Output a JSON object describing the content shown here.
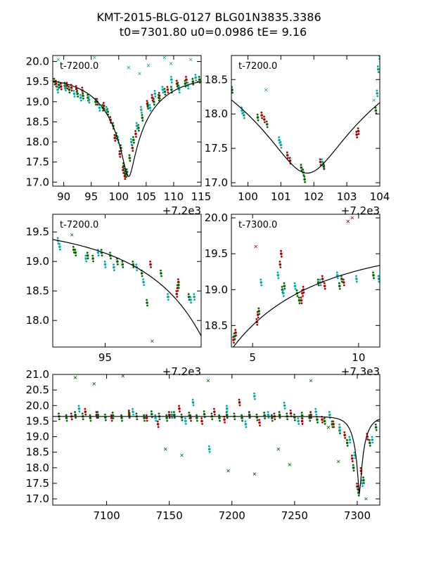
{
  "figure": {
    "title_line1": "KMT-2015-BLG-0127 BLG01N3835.3386",
    "title_line2": "t0=7301.80 u0=0.0986 tE=   9.16"
  },
  "colors": {
    "kmt_a": "#aa0000",
    "kmt_b": "#006600",
    "kmt_c": "#00aaaa",
    "model": "#000000"
  },
  "model": {
    "t0": 7301.8,
    "u0": 0.0986,
    "tE": 9.16,
    "base_mag": 19.65,
    "peak_mag": 17.14
  },
  "chart_data": [
    {
      "type": "scatter",
      "name": "zoom-left",
      "label": "t-7200.0",
      "offset_text": "+7.2e3",
      "xlim": [
        88,
        115
      ],
      "ylim": [
        20.15,
        16.9
      ],
      "xticks": [
        90,
        95,
        100,
        105,
        110,
        115
      ],
      "xtick_labels": [
        "90",
        "95",
        "100",
        "105",
        "110",
        "115"
      ],
      "yticks": [
        17.0,
        17.5,
        18.0,
        18.5,
        19.0,
        19.5,
        20.0
      ],
      "ytick_labels": [
        "17.0",
        "17.5",
        "18.0",
        "18.5",
        "19.0",
        "19.5",
        "20.0"
      ],
      "series": [
        {
          "name": "site-red",
          "color": "#aa0000",
          "x": [
            88.6,
            89.5,
            90.6,
            91.4,
            92.3,
            93.4,
            96.1,
            97.3,
            98.5,
            99.3,
            100.2,
            100.8,
            101.1,
            101.3,
            102.5,
            103.1,
            105.2,
            106.1,
            107.4,
            108.9,
            110.6,
            112.3
          ],
          "y": [
            19.45,
            19.38,
            19.4,
            19.35,
            19.32,
            19.28,
            19.0,
            18.9,
            18.55,
            18.1,
            17.7,
            17.3,
            17.15,
            17.2,
            17.85,
            18.2,
            18.95,
            19.1,
            19.15,
            19.3,
            19.45,
            19.55
          ]
        },
        {
          "name": "site-green",
          "color": "#006600",
          "x": [
            88.3,
            89.1,
            90.2,
            91.0,
            92.5,
            93.5,
            94.4,
            95.8,
            97.1,
            98.0,
            99.0,
            99.6,
            100.4,
            100.9,
            101.2,
            101.5,
            102.0,
            102.7,
            103.6,
            104.3,
            105.3,
            106.4,
            107.3,
            108.4,
            109.6,
            110.8,
            112.1,
            113.5,
            114.7
          ],
          "y": [
            19.5,
            19.42,
            19.4,
            19.3,
            19.2,
            19.15,
            19.1,
            19.0,
            18.85,
            18.75,
            18.4,
            18.15,
            17.85,
            17.4,
            17.2,
            17.25,
            17.6,
            18.05,
            18.35,
            18.6,
            18.9,
            19.0,
            19.1,
            19.25,
            19.3,
            19.4,
            19.45,
            19.5,
            19.55
          ]
        },
        {
          "name": "site-cyan",
          "color": "#00aaaa",
          "x": [
            88.9,
            90.3,
            91.9,
            93.1,
            94.6,
            96.5,
            97.8,
            99.9,
            102.3,
            103.3,
            104.1,
            105.7,
            106.6,
            108.0,
            109.6,
            111.0,
            112.6,
            114.0
          ],
          "y": [
            19.3,
            19.35,
            19.2,
            19.1,
            19.05,
            18.85,
            18.8,
            18.05,
            18.0,
            18.4,
            18.8,
            18.85,
            19.2,
            19.3,
            19.55,
            19.3,
            19.4,
            19.6
          ]
        },
        {
          "name": "outliers",
          "color": "#00aaaa",
          "x": [
            89.0,
            95.6,
            101.8,
            103.8,
            105.4,
            108.3,
            109.5,
            113.1
          ],
          "y": [
            20.05,
            20.1,
            19.85,
            19.7,
            19.9,
            20.1,
            19.95,
            20.05
          ]
        }
      ]
    },
    {
      "type": "scatter",
      "name": "zoom-right",
      "label": "t-7200.0",
      "offset_text": "+7.2e3",
      "xlim": [
        99.5,
        104.0
      ],
      "ylim": [
        18.85,
        16.95
      ],
      "xticks": [
        100,
        101,
        102,
        103,
        104
      ],
      "xtick_labels": [
        "100",
        "101",
        "102",
        "103",
        "104"
      ],
      "yticks": [
        17.0,
        17.5,
        18.0,
        18.5
      ],
      "ytick_labels": [
        "17.0",
        "17.5",
        "18.0",
        "18.5"
      ],
      "series": [
        {
          "name": "site-red",
          "color": "#aa0000",
          "x": [
            100.42,
            100.5,
            101.2,
            101.28,
            102.2,
            102.3,
            103.3,
            103.35
          ],
          "y": [
            17.98,
            17.92,
            17.4,
            17.32,
            17.3,
            17.24,
            17.7,
            17.75
          ]
        },
        {
          "name": "site-green",
          "color": "#006600",
          "x": [
            99.52,
            100.3,
            100.58,
            101.62,
            101.68,
            101.72,
            102.3,
            103.88
          ],
          "y": [
            18.35,
            17.95,
            17.85,
            17.22,
            17.15,
            17.05,
            17.25,
            18.05
          ]
        },
        {
          "name": "site-cyan",
          "color": "#00aaaa",
          "x": [
            99.82,
            99.88,
            100.95,
            101.0,
            102.25,
            103.92,
            103.95,
            104.0
          ],
          "y": [
            18.05,
            17.98,
            17.62,
            17.55,
            17.3,
            18.3,
            18.65,
            18.8
          ]
        },
        {
          "name": "outliers",
          "color": "#00aaaa",
          "x": [
            100.55,
            103.82
          ],
          "y": [
            18.35,
            18.2
          ]
        }
      ]
    },
    {
      "type": "scatter",
      "name": "early-rise",
      "label": "t-7200.0",
      "offset_text": "+7.2e3",
      "xlim": [
        92.0,
        100.5
      ],
      "ylim": [
        19.8,
        17.55
      ],
      "xticks": [
        95
      ],
      "xtick_labels": [
        "95"
      ],
      "yticks": [
        18.0,
        18.5,
        19.0,
        19.5
      ],
      "ytick_labels": [
        "18.0",
        "18.5",
        "19.0",
        "19.5"
      ],
      "series": [
        {
          "name": "site-red",
          "color": "#aa0000",
          "x": [
            99.1,
            99.15,
            99.2,
            97.6
          ],
          "y": [
            18.45,
            18.55,
            18.65,
            18.95
          ]
        },
        {
          "name": "site-green",
          "color": "#006600",
          "x": [
            93.2,
            93.3,
            94.0,
            94.3,
            94.8,
            95.3,
            95.7,
            96.0,
            96.6,
            97.1,
            97.4,
            98.2,
            99.2,
            99.8
          ],
          "y": [
            19.2,
            19.15,
            19.1,
            19.05,
            19.15,
            19.1,
            19.0,
            18.95,
            18.95,
            18.8,
            18.3,
            18.8,
            18.6,
            18.4
          ]
        },
        {
          "name": "site-cyan",
          "color": "#00aaaa",
          "x": [
            92.3,
            92.4,
            93.9,
            94.6,
            95.0,
            95.5,
            96.8,
            97.2,
            98.6,
            99.9,
            100.1
          ],
          "y": [
            19.35,
            19.25,
            19.05,
            19.15,
            18.95,
            18.9,
            18.9,
            18.65,
            18.4,
            18.35,
            18.4
          ]
        },
        {
          "name": "outliers",
          "color": "#006600",
          "x": [
            93.1,
            97.7
          ],
          "y": [
            19.45,
            17.65
          ]
        }
      ]
    },
    {
      "type": "scatter",
      "name": "post-peak",
      "label": "t-7300.0",
      "offset_text": "+7.3e3",
      "xlim": [
        4.0,
        11.0
      ],
      "ylim": [
        20.05,
        18.2
      ],
      "xticks": [
        5,
        10
      ],
      "xtick_labels": [
        "5",
        "10"
      ],
      "yticks": [
        18.5,
        19.0,
        19.5,
        20.0
      ],
      "ytick_labels": [
        "18.5",
        "19.0",
        "19.5",
        "20.0"
      ],
      "series": [
        {
          "name": "site-red",
          "color": "#aa0000",
          "x": [
            4.1,
            4.2,
            5.2,
            5.25,
            6.3,
            6.35,
            7.3,
            7.35,
            7.4,
            8.3,
            8.4,
            9.3
          ],
          "y": [
            18.3,
            18.4,
            18.55,
            18.65,
            19.35,
            19.5,
            18.85,
            18.95,
            19.0,
            19.15,
            19.05,
            19.1
          ]
        },
        {
          "name": "site-green",
          "color": "#006600",
          "x": [
            4.15,
            5.3,
            6.4,
            6.5,
            7.1,
            7.2,
            8.1,
            9.1,
            9.2,
            10.7
          ],
          "y": [
            18.35,
            18.7,
            19.0,
            19.05,
            18.95,
            18.85,
            19.1,
            19.05,
            19.15,
            19.2
          ]
        },
        {
          "name": "site-cyan",
          "color": "#00aaaa",
          "x": [
            5.4,
            6.2,
            6.45,
            7.0,
            8.2,
            9.0,
            9.9,
            10.95
          ],
          "y": [
            19.1,
            19.2,
            18.95,
            19.05,
            19.1,
            19.2,
            19.15,
            19.15
          ]
        },
        {
          "name": "outliers",
          "color": "#aa0000",
          "x": [
            5.15,
            9.5,
            9.7
          ],
          "y": [
            19.6,
            19.95,
            20.0
          ]
        }
      ]
    },
    {
      "type": "scatter",
      "name": "full-season",
      "label": "",
      "offset_text": "",
      "xlim": [
        7057,
        7318
      ],
      "ylim": [
        21.0,
        16.8
      ],
      "xticks": [
        7100,
        7150,
        7200,
        7250,
        7300
      ],
      "xtick_labels": [
        "7100",
        "7150",
        "7200",
        "7250",
        "7300"
      ],
      "yticks": [
        17.0,
        17.5,
        18.0,
        18.5,
        19.0,
        19.5,
        20.0,
        20.5,
        21.0
      ],
      "ytick_labels": [
        "17.0",
        "17.5",
        "18.0",
        "18.5",
        "19.0",
        "19.5",
        "20.0",
        "20.5",
        "21.0"
      ],
      "series": [
        {
          "name": "site-red",
          "color": "#aa0000",
          "x": [
            7072,
            7083,
            7092,
            7104,
            7118,
            7132,
            7141,
            7150,
            7158,
            7167,
            7176,
            7186,
            7194,
            7206,
            7214,
            7222,
            7234,
            7247,
            7256,
            7263,
            7272,
            7281,
            7290,
            7296,
            7300,
            7303,
            7308
          ],
          "y": [
            19.65,
            19.8,
            19.7,
            19.6,
            19.75,
            19.6,
            19.4,
            19.7,
            19.9,
            19.6,
            19.5,
            19.8,
            19.55,
            20.1,
            19.7,
            19.45,
            19.65,
            19.75,
            19.5,
            19.7,
            19.55,
            19.4,
            19.05,
            18.3,
            17.4,
            17.9,
            19.0
          ]
        },
        {
          "name": "site-green",
          "color": "#006600",
          "x": [
            7062,
            7068,
            7075,
            7081,
            7087,
            7093,
            7099,
            7105,
            7112,
            7118,
            7124,
            7130,
            7136,
            7142,
            7148,
            7154,
            7160,
            7166,
            7172,
            7178,
            7184,
            7190,
            7196,
            7202,
            7208,
            7214,
            7220,
            7226,
            7232,
            7238,
            7244,
            7250,
            7256,
            7262,
            7268,
            7274,
            7280,
            7286,
            7292,
            7297,
            7301,
            7305,
            7310,
            7315
          ],
          "y": [
            19.65,
            19.6,
            19.7,
            19.65,
            19.6,
            19.7,
            19.62,
            19.68,
            19.6,
            19.7,
            19.65,
            19.6,
            19.72,
            19.65,
            19.6,
            19.7,
            19.62,
            19.68,
            19.6,
            19.72,
            19.65,
            19.6,
            19.7,
            19.65,
            19.6,
            19.7,
            19.62,
            19.68,
            19.6,
            19.7,
            19.65,
            19.62,
            19.68,
            19.6,
            19.55,
            19.5,
            19.4,
            19.2,
            18.8,
            18.0,
            17.2,
            17.6,
            18.8,
            19.3
          ]
        },
        {
          "name": "site-cyan",
          "color": "#00aaaa",
          "x": [
            7078,
            7121,
            7139,
            7152,
            7163,
            7169,
            7182,
            7196,
            7211,
            7218,
            7229,
            7242,
            7253,
            7267,
            7278,
            7286,
            7294,
            7298,
            7304,
            7312
          ],
          "y": [
            19.9,
            19.8,
            19.6,
            19.7,
            19.5,
            20.1,
            18.6,
            19.9,
            19.4,
            20.3,
            19.7,
            20.0,
            19.5,
            19.8,
            19.7,
            19.3,
            18.9,
            18.4,
            17.5,
            18.9
          ]
        },
        {
          "name": "outliers",
          "color": "#006600",
          "x": [
            7075,
            7090,
            7113,
            7147,
            7160,
            7181,
            7197,
            7218,
            7237,
            7246,
            7263,
            7277,
            7285,
            7307
          ],
          "y": [
            20.9,
            20.7,
            20.95,
            18.6,
            18.4,
            20.8,
            17.9,
            17.8,
            18.6,
            18.1,
            20.8,
            19.3,
            18.2,
            17.0
          ]
        }
      ]
    }
  ]
}
